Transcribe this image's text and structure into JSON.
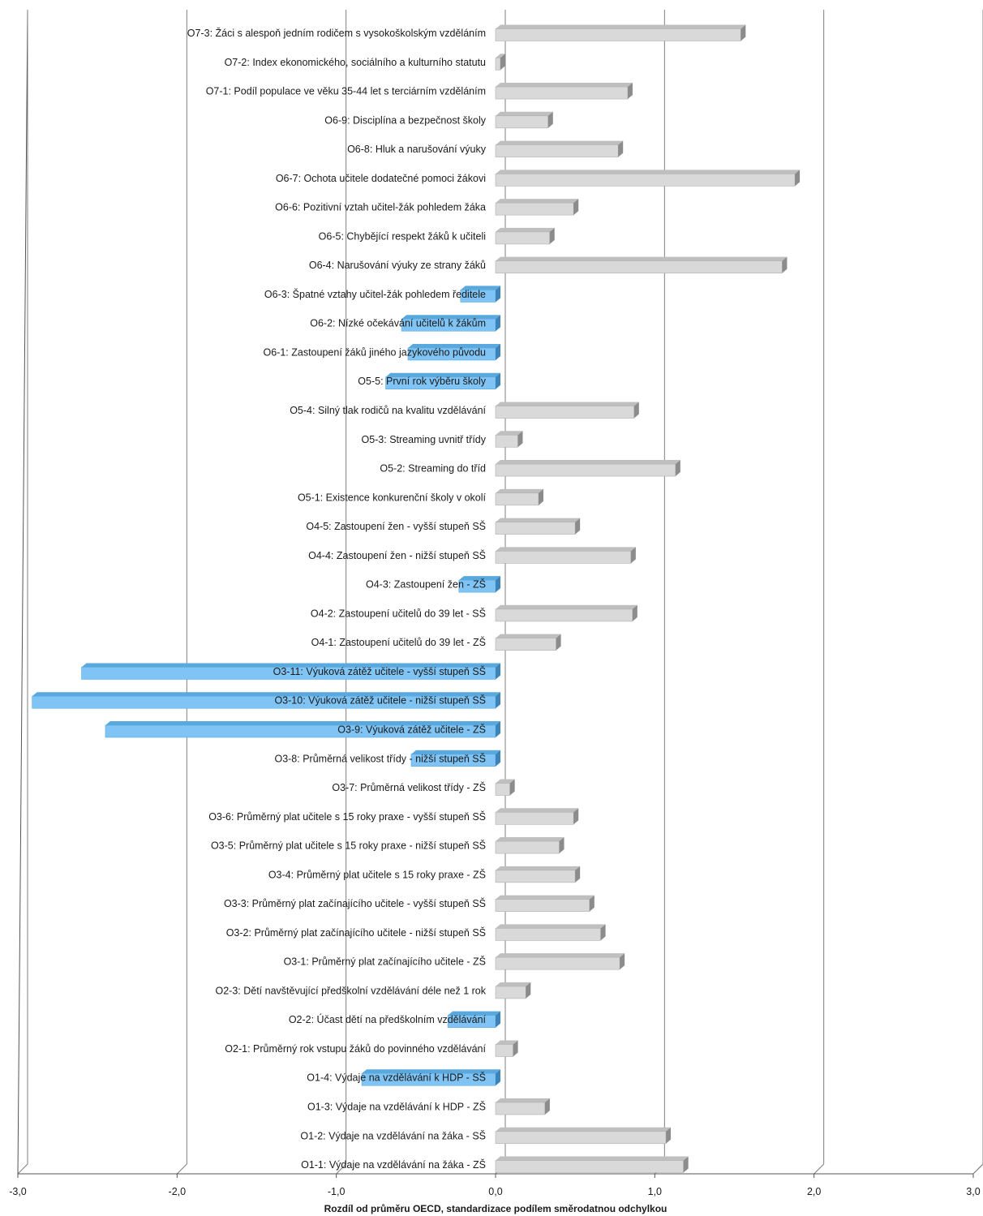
{
  "chart_data": {
    "type": "bar",
    "orientation": "horizontal",
    "xlabel": "Rozdíl od průměru OECD, standardizace podílem směrodatnou odchylkou",
    "xlim": [
      -3.0,
      3.0
    ],
    "xticks": [
      "-3,0",
      "-2,0",
      "-1,0",
      "0,0",
      "1,0",
      "2,0",
      "3,0"
    ],
    "grid": true,
    "colors": {
      "positive": "#d9d9d9",
      "negative": "#7fc4f4"
    },
    "categories": [
      "O7-3: Žáci s alespoň jedním rodičem s vysokoškolským vzděláním",
      "O7-2: Index ekonomického, sociálního a kulturního statutu",
      "O7-1: Podíl populace ve věku 35-44 let s terciárním vzděláním",
      "O6-9: Disciplína a bezpečnost školy",
      "O6-8: Hluk a narušování výuky",
      "O6-7: Ochota učitele dodatečné pomoci žákovi",
      "O6-6: Pozitivní vztah učitel-žák pohledem žáka",
      "O6-5: Chybějící respekt žáků k učiteli",
      "O6-4: Narušování výuky ze strany žáků",
      "O6-3: Špatné vztahy učitel-žák pohledem ředitele",
      "O6-2: Nízké očekávání učitelů k žákům",
      "O6-1: Zastoupení žáků jiného jazykového původu",
      "O5-5: První rok výběru školy",
      "O5-4: Silný tlak rodičů na kvalitu vzdělávání",
      "O5-3: Streaming uvnitř třídy",
      "O5-2: Streaming do tříd",
      "O5-1: Existence konkurenční školy v okolí",
      "O4-5: Zastoupení žen - vyšší stupeň SŠ",
      "O4-4: Zastoupení žen - nižší stupeň SŠ",
      "O4-3: Zastoupení žen - ZŠ",
      "O4-2: Zastoupení učitelů do 39 let - SŠ",
      "O4-1: Zastoupení učitelů do 39 let - ZŠ",
      "O3-11: Výuková zátěž učitele - vyšší stupeň SŠ",
      "O3-10: Výuková zátěž učitele - nižší stupeň SŠ",
      "O3-9: Výuková zátěž učitele - ZŠ",
      "O3-8: Průměrná velikost třídy - nižší stupeň SŠ",
      "O3-7: Průměrná velikost třídy - ZŠ",
      "O3-6: Průměrný plat učitele s 15 roky praxe - vyšší stupeň SŠ",
      "O3-5: Průměrný plat učitele s 15 roky praxe - nižší stupeň SŠ",
      "O3-4: Průměrný plat učitele s 15 roky praxe - ZŠ",
      "O3-3: Průměrný plat začínajícího učitele - vyšší stupeň SŠ",
      "O3-2: Průměrný plat začínajícího učitele - nižší stupeň SŠ",
      "O3-1: Průměrný plat začínajícího učitele - ZŠ",
      "O2-3: Dětí navštěvující předškolní vzdělávání déle než 1 rok",
      "O2-2: Účast dětí na předškolním vzdělávání",
      "O2-1: Průměrný rok vstupu žáků do povinného vzdělávání",
      "O1-4: Výdaje na vzdělávání k HDP - SŠ",
      "O1-3: Výdaje na vzdělávání k HDP - ZŠ",
      "O1-2: Výdaje na vzdělávání na žáka - SŠ",
      "O1-1: Výdaje na vzdělávání na žáka - ZŠ"
    ],
    "values": [
      1.54,
      0.03,
      0.83,
      0.33,
      0.77,
      1.88,
      0.49,
      0.34,
      1.8,
      -0.22,
      -0.59,
      -0.55,
      -0.69,
      0.87,
      0.14,
      1.13,
      0.27,
      0.5,
      0.85,
      -0.23,
      0.86,
      0.38,
      -2.6,
      -2.91,
      -2.45,
      -0.53,
      0.09,
      0.49,
      0.4,
      0.5,
      0.59,
      0.66,
      0.78,
      0.19,
      -0.3,
      0.11,
      -0.84,
      0.31,
      1.07,
      1.18
    ]
  }
}
